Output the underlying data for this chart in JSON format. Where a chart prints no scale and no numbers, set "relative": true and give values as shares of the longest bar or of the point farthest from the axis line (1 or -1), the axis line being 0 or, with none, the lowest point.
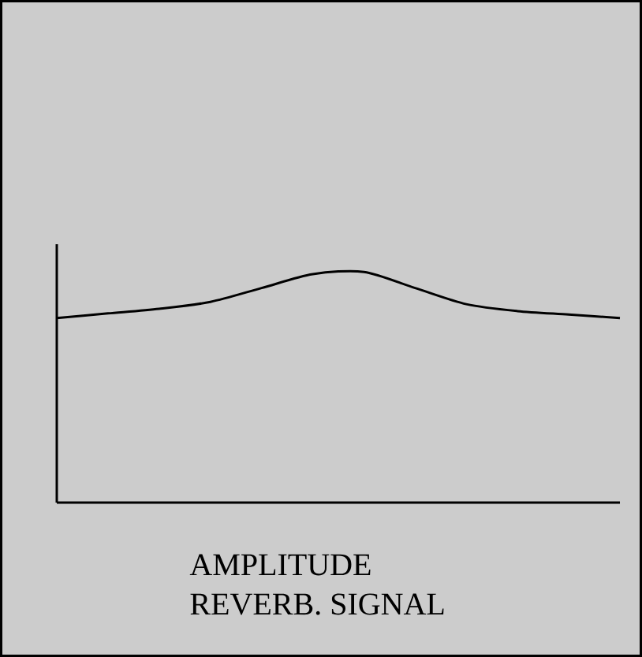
{
  "chart_data": {
    "type": "line",
    "relative": true,
    "xlabel": "AMPLITUDE",
    "annotations": [
      "REVERB. SIGNAL"
    ],
    "categories": [
      null,
      null,
      null,
      null,
      null,
      null,
      null,
      null,
      null,
      null,
      null,
      null
    ],
    "values": [
      0.8,
      0.82,
      0.84,
      0.87,
      0.93,
      0.99,
      1.0,
      0.93,
      0.86,
      0.83,
      0.815,
      0.8
    ],
    "color": "#000000"
  }
}
